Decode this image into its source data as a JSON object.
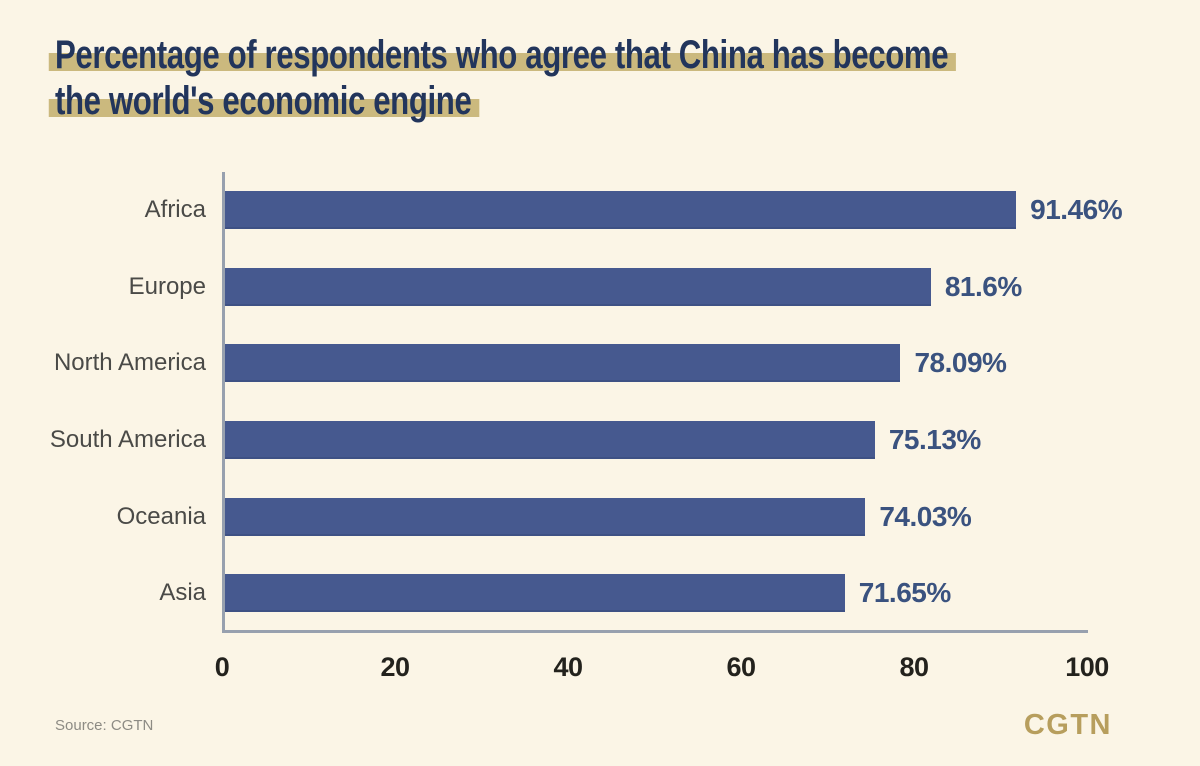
{
  "title": {
    "line1": "Percentage of respondents who agree that China has become",
    "line2": "the world's economic engine"
  },
  "chart_data": {
    "type": "bar",
    "orientation": "horizontal",
    "title": "Percentage of respondents who agree that China has become the world's economic engine",
    "categories": [
      "Africa",
      "Europe",
      "North America",
      "South America",
      "Oceania",
      "Asia"
    ],
    "values": [
      91.46,
      81.6,
      78.09,
      75.13,
      74.03,
      71.65
    ],
    "value_labels": [
      "91.46%",
      "81.6%",
      "78.09%",
      "75.13%",
      "74.03%",
      "71.65%"
    ],
    "x_ticks": [
      "0",
      "20",
      "40",
      "60",
      "80",
      "100"
    ],
    "xlim": [
      0,
      100
    ],
    "grid": false,
    "legend": null,
    "bar_color": "#46598F"
  },
  "footer": {
    "source": "Source: CGTN",
    "logo": "CGTN"
  },
  "colors": {
    "bg": "#FBF5E6",
    "bar": "#46598F",
    "title": "#22355C",
    "highlight": "#CBB97E",
    "value": "#3A527F",
    "category": "#4A4A47",
    "axis": "#97A0AE",
    "tick": "#23221D",
    "source": "#8D8B84",
    "logo": "#B79E5D"
  }
}
